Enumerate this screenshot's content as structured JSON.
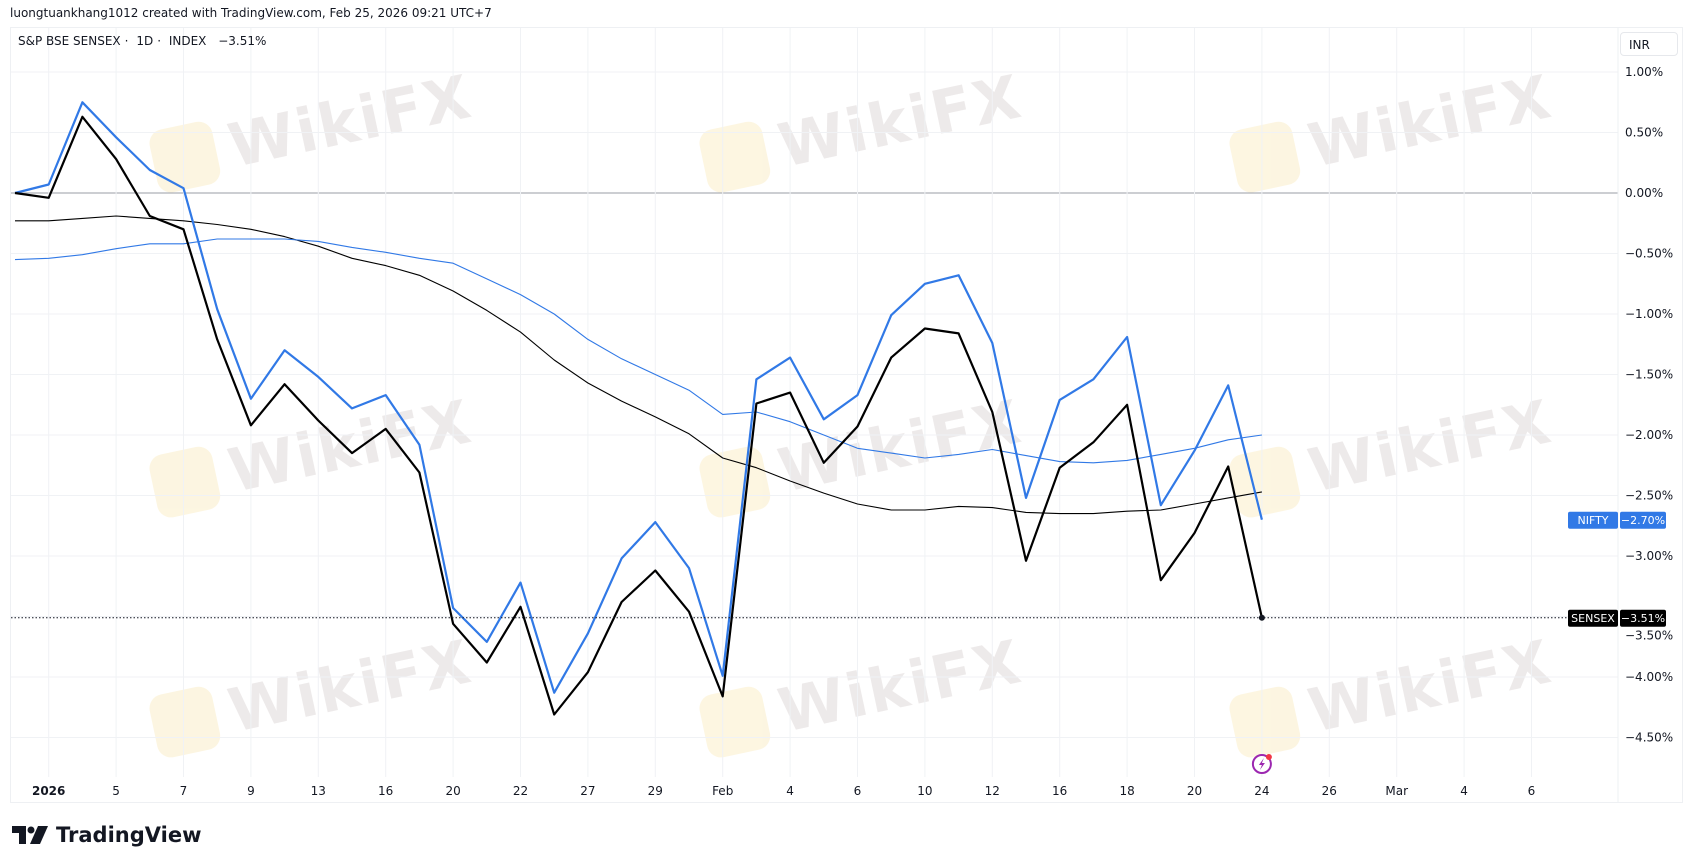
{
  "header": {
    "credit": "luongtuankhang1012 created with TradingView.com, Feb 25, 2026 09:21 UTC+7"
  },
  "legend": {
    "symbol": "S&P BSE SENSEX",
    "interval": "1D",
    "exchange": "INDEX",
    "change": "−3.51%"
  },
  "currency_button": "INR",
  "branding": "TradingView",
  "watermark": "WikiFX",
  "chart_data": {
    "type": "line",
    "y_unit": "percent change",
    "ylim": [
      -4.8,
      1.1
    ],
    "grid": true,
    "x": [
      "2025-12-31",
      "2026-01-01",
      "2026-01-02",
      "2026-01-05",
      "2026-01-06",
      "2026-01-07",
      "2026-01-08",
      "2026-01-09",
      "2026-01-12",
      "2026-01-13",
      "2026-01-14",
      "2026-01-16",
      "2026-01-19",
      "2026-01-20",
      "2026-01-21",
      "2026-01-22",
      "2026-01-23",
      "2026-01-27",
      "2026-01-28",
      "2026-01-29",
      "2026-01-30",
      "2026-02-01",
      "2026-02-02",
      "2026-02-04",
      "2026-02-05",
      "2026-02-06",
      "2026-02-09",
      "2026-02-10",
      "2026-02-11",
      "2026-02-12",
      "2026-02-13",
      "2026-02-16",
      "2026-02-17",
      "2026-02-18",
      "2026-02-19",
      "2026-02-20",
      "2026-02-23",
      "2026-02-24"
    ],
    "series": [
      {
        "name": "SENSEX",
        "color": "#000000",
        "width": 2.2,
        "values": [
          0,
          -0.04,
          0.63,
          0.28,
          -0.19,
          -0.3,
          -1.21,
          -1.92,
          -1.58,
          -1.88,
          -2.15,
          -1.95,
          -2.31,
          -3.56,
          -3.88,
          -3.42,
          -4.31,
          -3.96,
          -3.38,
          -3.12,
          -3.46,
          -4.16,
          -1.74,
          -1.65,
          -2.23,
          -1.93,
          -1.36,
          -1.12,
          -1.16,
          -1.81,
          -3.04,
          -2.27,
          -2.06,
          -1.75,
          -3.2,
          -2.81,
          -2.26,
          -3.51
        ],
        "last_label": "−3.51%"
      },
      {
        "name": "NIFTY",
        "color": "#3179e6",
        "width": 2.2,
        "values": [
          0,
          0.07,
          0.75,
          0.46,
          0.19,
          0.04,
          -0.96,
          -1.7,
          -1.3,
          -1.52,
          -1.78,
          -1.67,
          -2.08,
          -3.43,
          -3.71,
          -3.22,
          -4.13,
          -3.64,
          -3.02,
          -2.72,
          -3.1,
          -3.99,
          -1.54,
          -1.36,
          -1.87,
          -1.67,
          -1.01,
          -0.75,
          -0.68,
          -1.24,
          -2.52,
          -1.71,
          -1.54,
          -1.19,
          -2.58,
          -2.13,
          -1.59,
          -2.7
        ],
        "last_label": "−2.70%"
      },
      {
        "color": "#000000",
        "width": 1.1,
        "values": [
          -0.23,
          -0.23,
          -0.21,
          -0.19,
          -0.21,
          -0.23,
          -0.26,
          -0.3,
          -0.36,
          -0.44,
          -0.54,
          -0.6,
          -0.68,
          -0.81,
          -0.97,
          -1.15,
          -1.38,
          -1.57,
          -1.72,
          -1.85,
          -1.99,
          -2.19,
          -2.27,
          -2.38,
          -2.48,
          -2.57,
          -2.62,
          -2.62,
          -2.59,
          -2.6,
          -2.64,
          -2.65,
          -2.65,
          -2.63,
          -2.62,
          -2.57,
          -2.52,
          -2.47
        ]
      },
      {
        "color": "#3179e6",
        "width": 1.1,
        "values": [
          -0.55,
          -0.54,
          -0.51,
          -0.46,
          -0.42,
          -0.42,
          -0.38,
          -0.38,
          -0.38,
          -0.4,
          -0.45,
          -0.49,
          -0.54,
          -0.58,
          -0.71,
          -0.84,
          -1.0,
          -1.21,
          -1.37,
          -1.5,
          -1.63,
          -1.83,
          -1.81,
          -1.89,
          -2.0,
          -2.11,
          -2.15,
          -2.19,
          -2.16,
          -2.12,
          -2.17,
          -2.22,
          -2.23,
          -2.21,
          -2.16,
          -2.11,
          -2.04,
          -2.0
        ]
      }
    ],
    "yticks": [
      {
        "value": 1.0,
        "label": "1.00%"
      },
      {
        "value": 0.5,
        "label": "0.50%"
      },
      {
        "value": 0.0,
        "label": "0.00%"
      },
      {
        "value": -0.5,
        "label": "−0.50%"
      },
      {
        "value": -1.0,
        "label": "−1.00%"
      },
      {
        "value": -1.5,
        "label": "−1.50%"
      },
      {
        "value": -2.0,
        "label": "−2.00%"
      },
      {
        "value": -2.5,
        "label": "−2.50%"
      },
      {
        "value": -3.0,
        "label": "−3.00%"
      },
      {
        "value": -3.5,
        "label": "−3.50%"
      },
      {
        "value": -4.0,
        "label": "−4.00%"
      },
      {
        "value": -4.5,
        "label": "−4.50%"
      }
    ],
    "xticks": [
      {
        "date": "2026-01-01",
        "label": "2026",
        "bold": true
      },
      {
        "date": "2026-01-05",
        "label": "5"
      },
      {
        "date": "2026-01-07",
        "label": "7"
      },
      {
        "date": "2026-01-09",
        "label": "9"
      },
      {
        "date": "2026-01-13",
        "label": "13"
      },
      {
        "date": "2026-01-16",
        "label": "16"
      },
      {
        "date": "2026-01-20",
        "label": "20"
      },
      {
        "date": "2026-01-22",
        "label": "22"
      },
      {
        "date": "2026-01-27",
        "label": "27"
      },
      {
        "date": "2026-01-29",
        "label": "29"
      },
      {
        "date": "2026-02-01",
        "label": "Feb"
      },
      {
        "date": "2026-02-04",
        "label": "4"
      },
      {
        "date": "2026-02-06",
        "label": "6"
      },
      {
        "date": "2026-02-10",
        "label": "10"
      },
      {
        "date": "2026-02-12",
        "label": "12"
      },
      {
        "date": "2026-02-16",
        "label": "16"
      },
      {
        "date": "2026-02-18",
        "label": "18"
      },
      {
        "date": "2026-02-20",
        "label": "20"
      },
      {
        "date": "2026-02-24",
        "label": "24"
      },
      {
        "date": "2026-02-26",
        "label": "26"
      },
      {
        "date": "2026-03-02",
        "label": "Mar"
      },
      {
        "date": "2026-03-04",
        "label": "4"
      },
      {
        "date": "2026-03-06",
        "label": "6"
      }
    ],
    "future_dates": [
      "2026-02-25",
      "2026-02-26",
      "2026-02-27",
      "2026-03-02",
      "2026-03-03",
      "2026-03-04",
      "2026-03-05",
      "2026-03-06"
    ]
  }
}
